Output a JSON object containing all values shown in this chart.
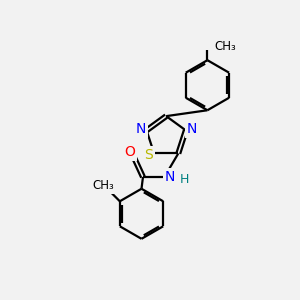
{
  "bg_color": "#f2f2f2",
  "atom_colors": {
    "S": "#b8b800",
    "N": "#0000ff",
    "O": "#ff0000",
    "H": "#008080",
    "C": "#000000"
  },
  "bond_color": "#000000",
  "bond_width": 1.6,
  "font_size_atoms": 10,
  "font_size_small": 8.5
}
